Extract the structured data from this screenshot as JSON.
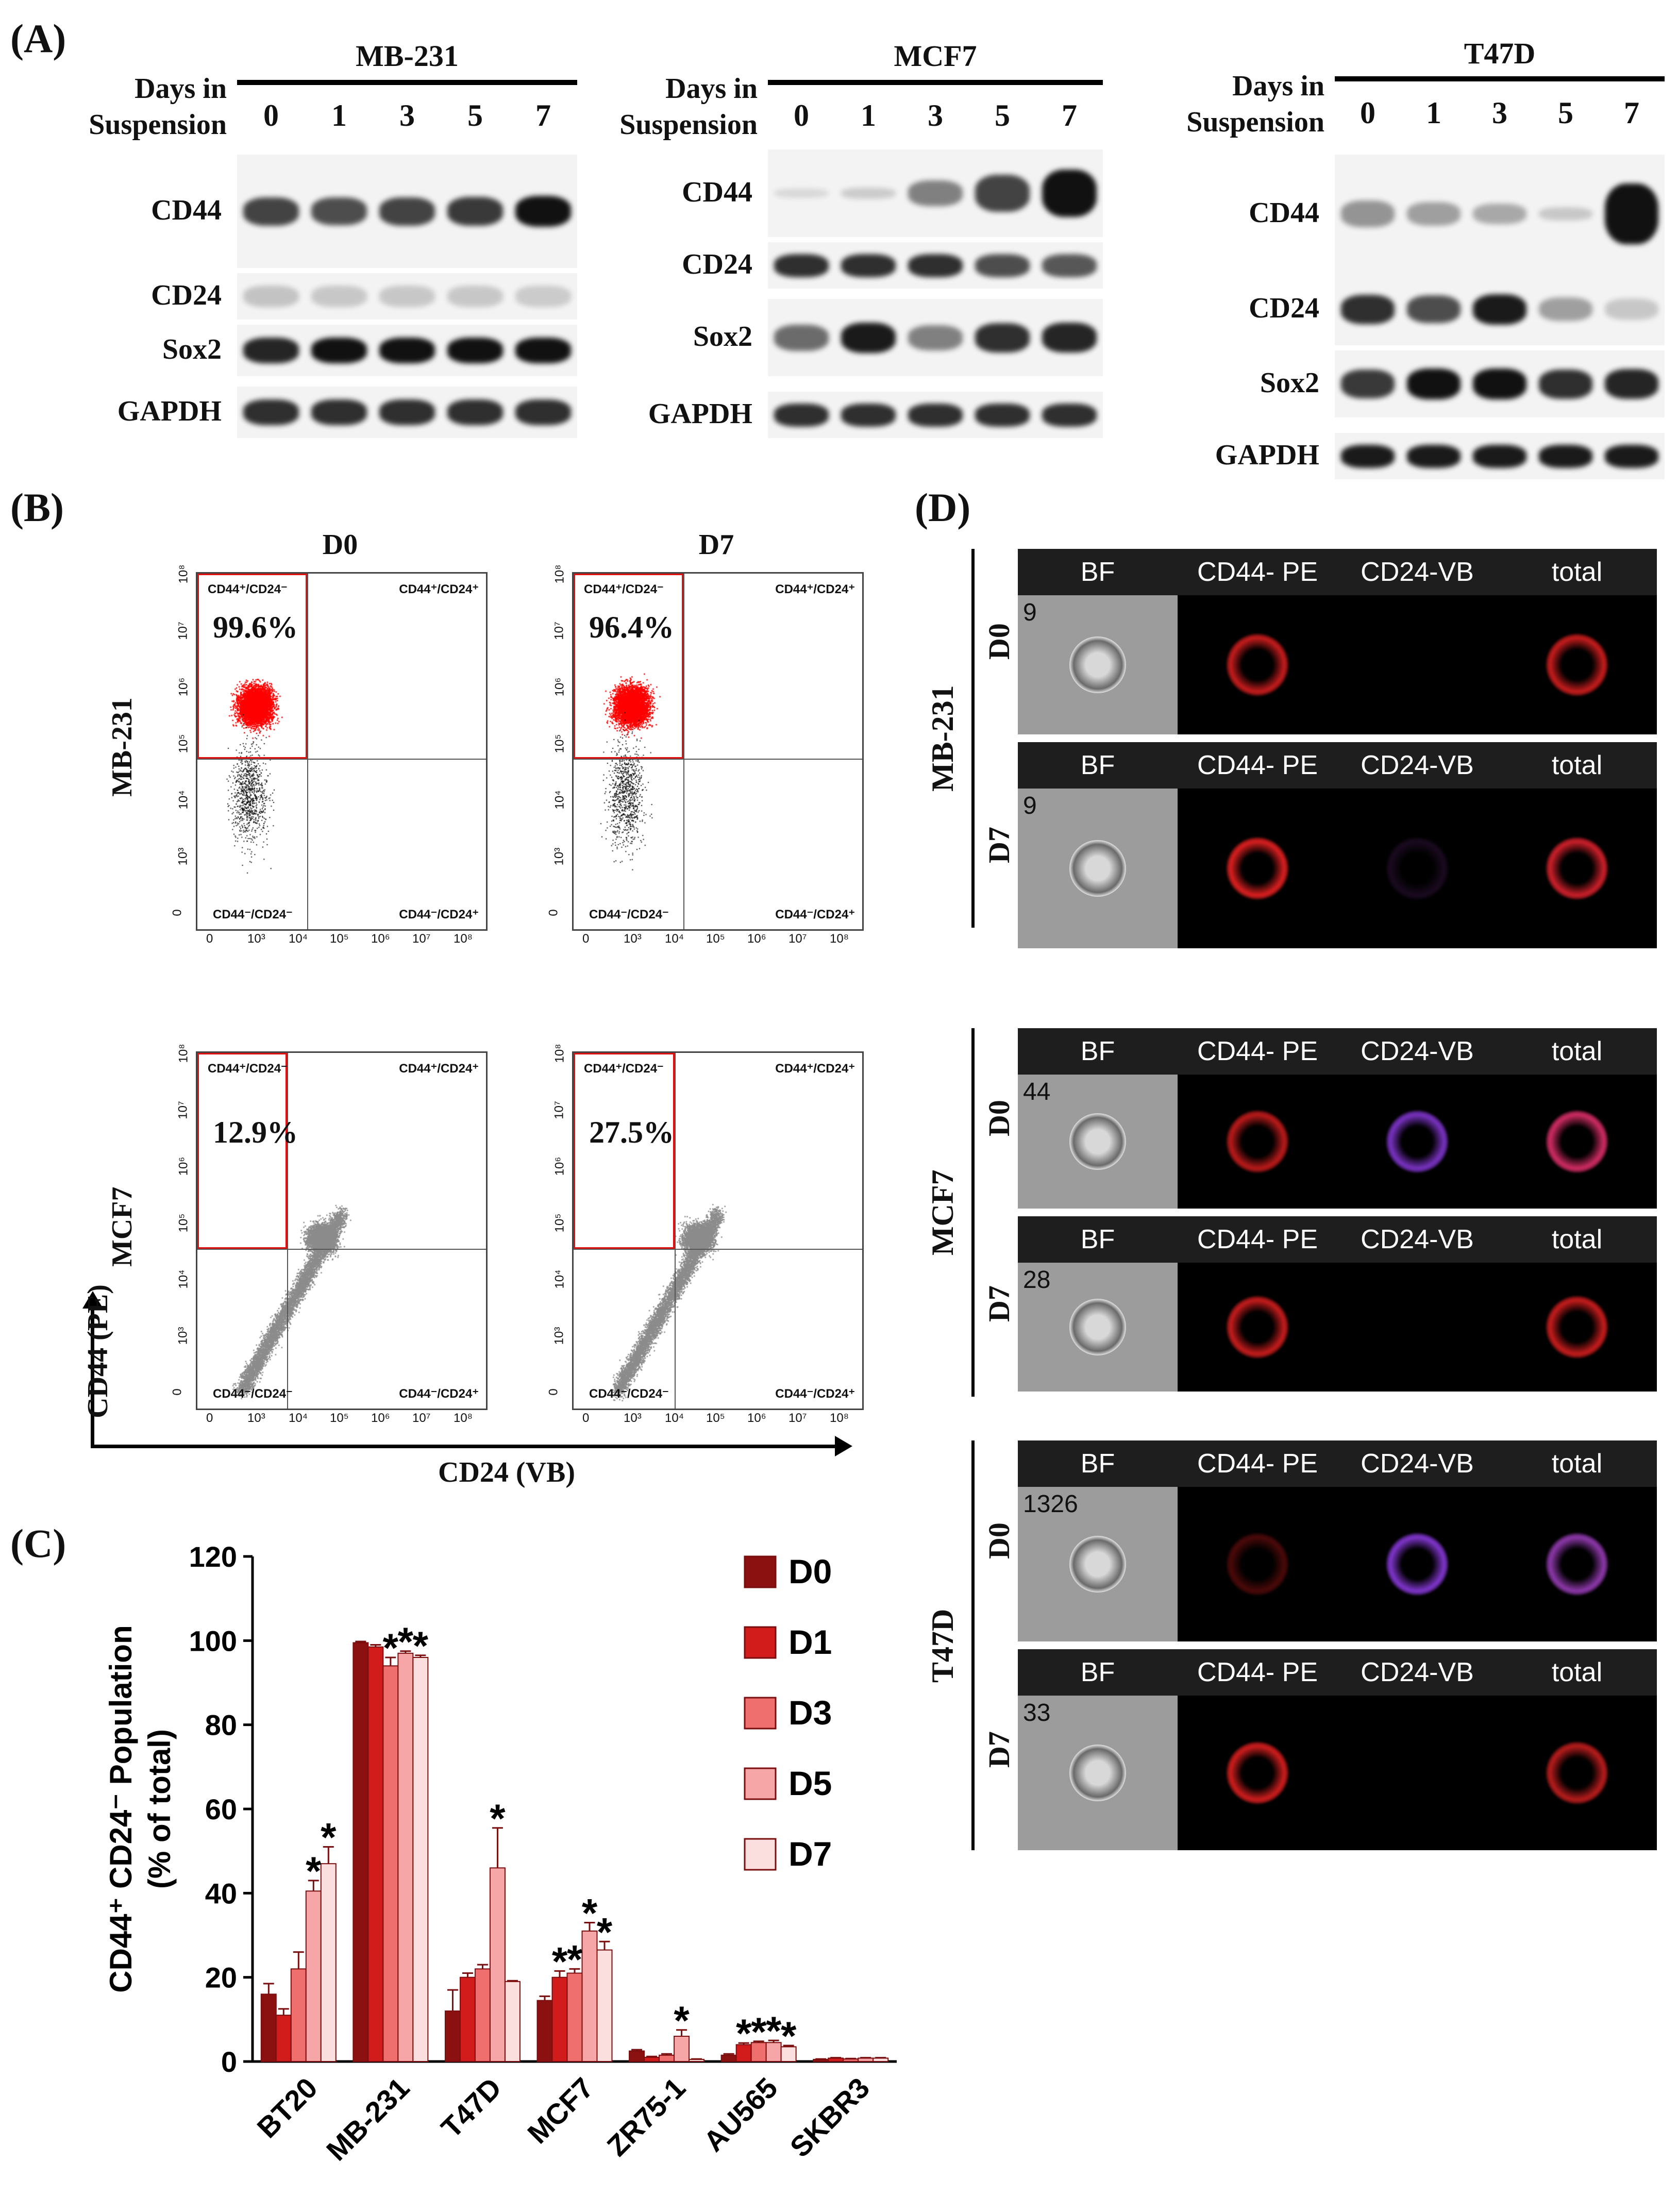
{
  "panel_labels": {
    "A": "(A)",
    "B": "(B)",
    "C": "(C)",
    "D": "(D)"
  },
  "panelA": {
    "days_label_1": "Days in",
    "days_label_2": "Suspension",
    "lanes": [
      "0",
      "1",
      "3",
      "5",
      "7"
    ],
    "blots": [
      {
        "cell_line": "MB-231",
        "rows": [
          "CD44",
          "CD24",
          "Sox2",
          "GAPDH"
        ]
      },
      {
        "cell_line": "MCF7",
        "rows": [
          "CD44",
          "CD24",
          "Sox2",
          "GAPDH"
        ]
      },
      {
        "cell_line": "T47D",
        "rows": [
          "CD44",
          "CD24",
          "Sox2",
          "GAPDH"
        ]
      }
    ]
  },
  "panelB": {
    "col_titles": [
      "D0",
      "D7"
    ],
    "row_labels": [
      "MB-231",
      "MCF7"
    ],
    "quadrants": {
      "ul": "CD44⁺/CD24⁻",
      "ur": "CD44⁺/CD24⁺",
      "ll": "CD44⁻/CD24⁻",
      "lr": "CD44⁻/CD24⁺"
    },
    "percents": [
      [
        "99.6%",
        "96.4%"
      ],
      [
        "12.9%",
        "27.5%"
      ]
    ],
    "y_ticks": [
      "10⁸",
      "10⁷",
      "10⁶",
      "10⁵",
      "10⁴",
      "10³",
      "0"
    ],
    "x_ticks": [
      "0",
      "10³",
      "10⁴",
      "10⁵",
      "10⁶",
      "10⁷",
      "10⁸"
    ],
    "y_axis_label": "CD44 (PE)",
    "x_axis_label": "CD24 (VB)",
    "colors": {
      "positive": "#ff0000",
      "negative_mb": "#111111",
      "negative_mcf": "#8c8c8c",
      "gate": "#e01010"
    }
  },
  "panelD": {
    "headers": [
      "BF",
      "CD44- PE",
      "CD24-VB",
      "total"
    ],
    "groups": [
      {
        "cell_line": "MB-231",
        "rows": [
          {
            "day": "D0",
            "count": "9"
          },
          {
            "day": "D7",
            "count": "9"
          }
        ]
      },
      {
        "cell_line": "MCF7",
        "rows": [
          {
            "day": "D0",
            "count": "44"
          },
          {
            "day": "D7",
            "count": "28"
          }
        ]
      },
      {
        "cell_line": "T47D",
        "rows": [
          {
            "day": "D0",
            "count": "1326"
          },
          {
            "day": "D7",
            "count": "33"
          }
        ]
      }
    ]
  },
  "chart_data": {
    "type": "bar",
    "ylabel_line1": "CD44⁺ CD24⁻ Population",
    "ylabel_line2": "(% of total)",
    "ylim": [
      0,
      120
    ],
    "yticks": [
      "0",
      "20",
      "40",
      "60",
      "80",
      "100",
      "120"
    ],
    "categories": [
      "BT20",
      "MB-231",
      "T47D",
      "MCF7",
      "ZR75-1",
      "AU565",
      "SKBR3"
    ],
    "series": [
      {
        "name": "D0",
        "color": "#8b1010",
        "values": [
          16,
          99.5,
          12,
          14.5,
          2.5,
          1.5,
          0.5
        ],
        "errors": [
          2.5,
          0.3,
          5,
          1,
          0.3,
          0.3,
          0.1
        ]
      },
      {
        "name": "D1",
        "color": "#d21c1c",
        "values": [
          11,
          98.5,
          20,
          20,
          1,
          4,
          0.8
        ],
        "errors": [
          1.5,
          0.5,
          1,
          1.5,
          0.2,
          0.4,
          0.1
        ]
      },
      {
        "name": "D3",
        "color": "#ef6f6f",
        "values": [
          22,
          94,
          22,
          21,
          1.5,
          4.5,
          0.6
        ],
        "errors": [
          4,
          2,
          1,
          1,
          0.3,
          0.3,
          0.1
        ]
      },
      {
        "name": "D5",
        "color": "#f6a6a6",
        "values": [
          40.5,
          97,
          46,
          31,
          6,
          4.5,
          0.8
        ],
        "errors": [
          2.5,
          0.5,
          9.5,
          2,
          1.5,
          0.5,
          0.1
        ]
      },
      {
        "name": "D7",
        "color": "#fbdede",
        "values": [
          47,
          96,
          19,
          26.5,
          0.5,
          3.5,
          0.8
        ],
        "errors": [
          4,
          0.5,
          0.2,
          2,
          0.1,
          0.3,
          0.1
        ]
      }
    ],
    "significance": [
      [
        0,
        3
      ],
      [
        0,
        4
      ],
      [
        1,
        2
      ],
      [
        1,
        3
      ],
      [
        1,
        4
      ],
      [
        2,
        3
      ],
      [
        3,
        1
      ],
      [
        3,
        2
      ],
      [
        3,
        3
      ],
      [
        3,
        4
      ],
      [
        4,
        3
      ],
      [
        5,
        1
      ],
      [
        5,
        2
      ],
      [
        5,
        3
      ],
      [
        5,
        4
      ]
    ],
    "significance_symbol": "*",
    "legend_position": "top-right"
  }
}
